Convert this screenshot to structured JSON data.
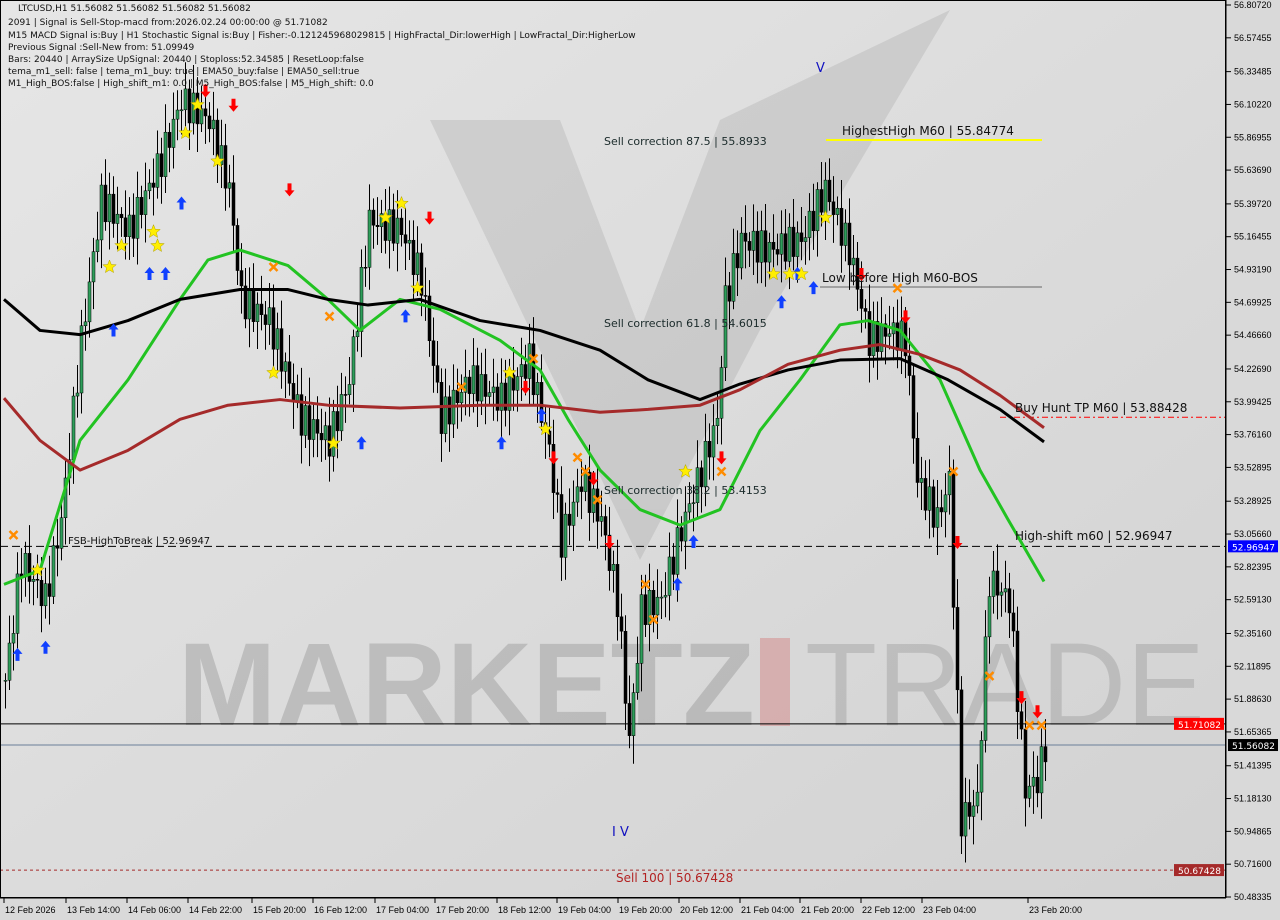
{
  "header": {
    "symbol_line": "LTCUSD,H1  51.56082 51.56082 51.56082 51.56082",
    "lines": [
      "2091 | Signal is Sell-Stop-macd from:2026.02.24 00:00:00 @ 51.71082",
      "M15 MACD Signal is:Buy | H1 Stochastic Signal is:Buy | Fisher:-0.121245968029815 | HighFractal_Dir:lowerHigh | LowFractal_Dir:HigherLow",
      "Previous Signal :Sell-New from: 51.09949",
      "Bars: 20440 | ArraySize UpSignal: 20440 | Stoploss:52.34585 | ResetLoop:false",
      "tema_m1_sell: false | tema_m1_buy: true | EMA50_buy:false | EMA50_sell:true",
      "M1_High_BOS:false | High_shift_m1: 0.0 | M5_High_BOS:false | M5_High_shift: 0.0"
    ]
  },
  "watermark": {
    "left": "MARKETZ",
    "right": "TRADE"
  },
  "colors": {
    "background": "#d9d9d9",
    "ema_green": "#22c322",
    "ma_black": "#000000",
    "ma_red": "#a52a2a",
    "highest_high": "#ffff00",
    "current_price_tag": "#ff0000",
    "last_price_tag": "#000000",
    "level_tag_blue": "#0000ff",
    "sell100_tag": "#a52a2a"
  },
  "chart_data": {
    "type": "candlestick",
    "title": "LTCUSD,H1",
    "ylim": [
      50.48335,
      56.8072
    ],
    "grid": false,
    "y_ticks": [
      "56.80720",
      "56.57455",
      "56.33485",
      "56.10220",
      "55.86955",
      "55.63690",
      "55.39720",
      "55.16455",
      "54.93190",
      "54.69925",
      "54.46660",
      "54.22690",
      "53.99425",
      "53.76160",
      "53.52895",
      "53.28925",
      "53.05660",
      "52.82395",
      "52.59130",
      "52.35160",
      "52.11895",
      "51.88630",
      "51.65365",
      "51.41395",
      "51.18130",
      "50.94865",
      "50.71600",
      "50.48335"
    ],
    "x_ticks": [
      "12 Feb 2026",
      "13 Feb 14:00",
      "14 Feb 06:00",
      "14 Feb 22:00",
      "15 Feb 20:00",
      "16 Feb 12:00",
      "17 Feb 04:00",
      "17 Feb 20:00",
      "18 Feb 12:00",
      "19 Feb 04:00",
      "19 Feb 20:00",
      "20 Feb 12:00",
      "21 Feb 04:00",
      "21 Feb 20:00",
      "22 Feb 12:00",
      "23 Feb 04:00",
      "23 Feb 20:00"
    ],
    "price_path": [
      [
        0,
        52.02
      ],
      [
        4,
        52.87
      ],
      [
        10,
        52.59
      ],
      [
        14,
        53.16
      ],
      [
        19,
        54.43
      ],
      [
        24,
        55.42
      ],
      [
        31,
        55.21
      ],
      [
        39,
        55.71
      ],
      [
        44,
        56.13
      ],
      [
        51,
        55.99
      ],
      [
        56,
        55.5
      ],
      [
        59,
        54.72
      ],
      [
        66,
        54.57
      ],
      [
        74,
        53.87
      ],
      [
        81,
        53.72
      ],
      [
        86,
        54.15
      ],
      [
        91,
        55.28
      ],
      [
        99,
        55.21
      ],
      [
        104,
        54.86
      ],
      [
        109,
        53.87
      ],
      [
        116,
        54.15
      ],
      [
        124,
        54.01
      ],
      [
        131,
        54.29
      ],
      [
        136,
        53.65
      ],
      [
        139,
        53.01
      ],
      [
        144,
        53.44
      ],
      [
        149,
        53.16
      ],
      [
        153,
        52.59
      ],
      [
        156,
        51.6
      ],
      [
        159,
        52.52
      ],
      [
        164,
        52.59
      ],
      [
        169,
        53.09
      ],
      [
        174,
        53.51
      ],
      [
        178,
        53.87
      ],
      [
        180,
        54.72
      ],
      [
        184,
        55.14
      ],
      [
        191,
        55.07
      ],
      [
        199,
        55.14
      ],
      [
        205,
        55.5
      ],
      [
        211,
        55.07
      ],
      [
        216,
        54.43
      ],
      [
        221,
        54.5
      ],
      [
        225,
        54.43
      ],
      [
        228,
        53.44
      ],
      [
        233,
        53.16
      ],
      [
        236,
        53.44
      ],
      [
        239,
        51.03
      ],
      [
        243,
        51.17
      ],
      [
        246,
        52.73
      ],
      [
        251,
        52.59
      ],
      [
        255,
        51.24
      ],
      [
        258,
        51.31
      ],
      [
        260,
        51.56
      ]
    ],
    "series": [
      {
        "color": "#22c322",
        "points": [
          [
            0,
            52.7
          ],
          [
            9,
            52.8
          ],
          [
            19,
            53.72
          ],
          [
            31,
            54.15
          ],
          [
            44,
            54.72
          ],
          [
            51,
            55.0
          ],
          [
            59,
            55.07
          ],
          [
            71,
            54.96
          ],
          [
            81,
            54.72
          ],
          [
            89,
            54.5
          ],
          [
            99,
            54.72
          ],
          [
            109,
            54.65
          ],
          [
            124,
            54.43
          ],
          [
            134,
            54.22
          ],
          [
            141,
            53.87
          ],
          [
            149,
            53.51
          ],
          [
            159,
            53.23
          ],
          [
            169,
            53.12
          ],
          [
            179,
            53.23
          ],
          [
            189,
            53.79
          ],
          [
            199,
            54.15
          ],
          [
            209,
            54.54
          ],
          [
            216,
            54.57
          ],
          [
            224,
            54.5
          ],
          [
            234,
            54.15
          ],
          [
            244,
            53.51
          ],
          [
            251,
            53.16
          ],
          [
            260,
            52.72
          ]
        ]
      },
      {
        "color": "#000000",
        "points": [
          [
            0,
            54.72
          ],
          [
            9,
            54.5
          ],
          [
            19,
            54.47
          ],
          [
            31,
            54.57
          ],
          [
            44,
            54.72
          ],
          [
            59,
            54.79
          ],
          [
            71,
            54.79
          ],
          [
            81,
            54.72
          ],
          [
            91,
            54.68
          ],
          [
            104,
            54.72
          ],
          [
            119,
            54.57
          ],
          [
            134,
            54.5
          ],
          [
            149,
            54.36
          ],
          [
            161,
            54.15
          ],
          [
            174,
            54.01
          ],
          [
            184,
            54.12
          ],
          [
            196,
            54.22
          ],
          [
            209,
            54.29
          ],
          [
            224,
            54.3
          ],
          [
            236,
            54.15
          ],
          [
            249,
            53.94
          ],
          [
            260,
            53.71
          ]
        ]
      },
      {
        "color": "#a52a2a",
        "points": [
          [
            0,
            54.02
          ],
          [
            9,
            53.72
          ],
          [
            19,
            53.51
          ],
          [
            31,
            53.65
          ],
          [
            44,
            53.87
          ],
          [
            56,
            53.97
          ],
          [
            69,
            54.01
          ],
          [
            81,
            53.97
          ],
          [
            99,
            53.95
          ],
          [
            119,
            53.97
          ],
          [
            134,
            53.97
          ],
          [
            149,
            53.92
          ],
          [
            161,
            53.94
          ],
          [
            174,
            53.97
          ],
          [
            184,
            54.08
          ],
          [
            196,
            54.26
          ],
          [
            209,
            54.36
          ],
          [
            219,
            54.4
          ],
          [
            229,
            54.33
          ],
          [
            239,
            54.22
          ],
          [
            249,
            54.04
          ],
          [
            260,
            53.81
          ]
        ]
      }
    ],
    "buy_arrows": [
      [
        3,
        52.2
      ],
      [
        10,
        52.25
      ],
      [
        27,
        54.5
      ],
      [
        44,
        55.4
      ],
      [
        36,
        54.9
      ],
      [
        40,
        54.9
      ],
      [
        89,
        53.7
      ],
      [
        100,
        54.6
      ],
      [
        124,
        53.7
      ],
      [
        134,
        53.9
      ],
      [
        168,
        52.7
      ],
      [
        172,
        53.0
      ],
      [
        194,
        54.7
      ],
      [
        198,
        54.9
      ],
      [
        202,
        54.8
      ]
    ],
    "sell_arrows": [
      [
        50,
        56.2
      ],
      [
        57,
        56.1
      ],
      [
        71,
        55.5
      ],
      [
        106,
        55.3
      ],
      [
        130,
        54.1
      ],
      [
        137,
        53.6
      ],
      [
        147,
        53.45
      ],
      [
        151,
        53.0
      ],
      [
        179,
        53.6
      ],
      [
        214,
        54.9
      ],
      [
        225,
        54.6
      ],
      [
        238,
        53.0
      ],
      [
        254,
        51.9
      ],
      [
        258,
        51.8
      ]
    ],
    "stars": [
      [
        8,
        52.8
      ],
      [
        26,
        54.95
      ],
      [
        29,
        55.1
      ],
      [
        37,
        55.2
      ],
      [
        38,
        55.1
      ],
      [
        45,
        55.9
      ],
      [
        48,
        56.1
      ],
      [
        53,
        55.7
      ],
      [
        67,
        54.2
      ],
      [
        82,
        53.7
      ],
      [
        95,
        55.3
      ],
      [
        99,
        55.4
      ],
      [
        103,
        54.8
      ],
      [
        126,
        54.2
      ],
      [
        135,
        53.8
      ],
      [
        170,
        53.5
      ],
      [
        192,
        54.9
      ],
      [
        196,
        54.9
      ],
      [
        199,
        54.9
      ],
      [
        205,
        55.3
      ]
    ],
    "x_marks": [
      [
        2,
        53.05
      ],
      [
        67,
        54.95
      ],
      [
        81,
        54.6
      ],
      [
        114,
        54.1
      ],
      [
        132,
        54.3
      ],
      [
        143,
        53.6
      ],
      [
        145,
        53.5
      ],
      [
        148,
        53.3
      ],
      [
        160,
        52.7
      ],
      [
        162,
        52.45
      ],
      [
        179,
        53.5
      ],
      [
        223,
        54.8
      ],
      [
        237,
        53.5
      ],
      [
        246,
        52.05
      ],
      [
        256,
        51.7
      ],
      [
        259,
        51.7
      ]
    ],
    "annotations": [
      {
        "text": "Sell correction 87.5 | 55.8933",
        "price": 55.8933
      },
      {
        "text": "Sell correction 61.8 | 54.6015",
        "price": 54.6015
      },
      {
        "text": "Sell correction 38.2 | 53.4153",
        "price": 53.4153
      },
      {
        "text": "HighestHigh   M60 | 55.84774",
        "price": 55.84774
      },
      {
        "text": "Low before High   M60-BOS",
        "price": 54.8
      },
      {
        "text": "FSB-HighToBreak | 52.96947",
        "price": 52.96947
      },
      {
        "text": "Buy Hunt TP M60 | 53.88428",
        "price": 53.88428
      },
      {
        "text": "High-shift m60 | 52.96947",
        "price": 52.96947
      },
      {
        "text": "Sell 100 | 50.67428",
        "price": 50.67428
      },
      {
        "text": "V",
        "price": 56.4
      },
      {
        "text": "I V",
        "price": 50.95
      }
    ],
    "price_tags": [
      {
        "text": "52.96947",
        "price": 52.96947,
        "bg": "#0000ff",
        "fg": "#ffffff"
      },
      {
        "text": "51.71082",
        "price": 51.71082,
        "bg": "#ff0000",
        "fg": "#ffffff"
      },
      {
        "text": "51.56082",
        "price": 51.56082,
        "bg": "#000000",
        "fg": "#ffffff"
      },
      {
        "text": "50.67428",
        "price": 50.67428,
        "bg": "#a52a2a",
        "fg": "#ffffff"
      }
    ]
  }
}
